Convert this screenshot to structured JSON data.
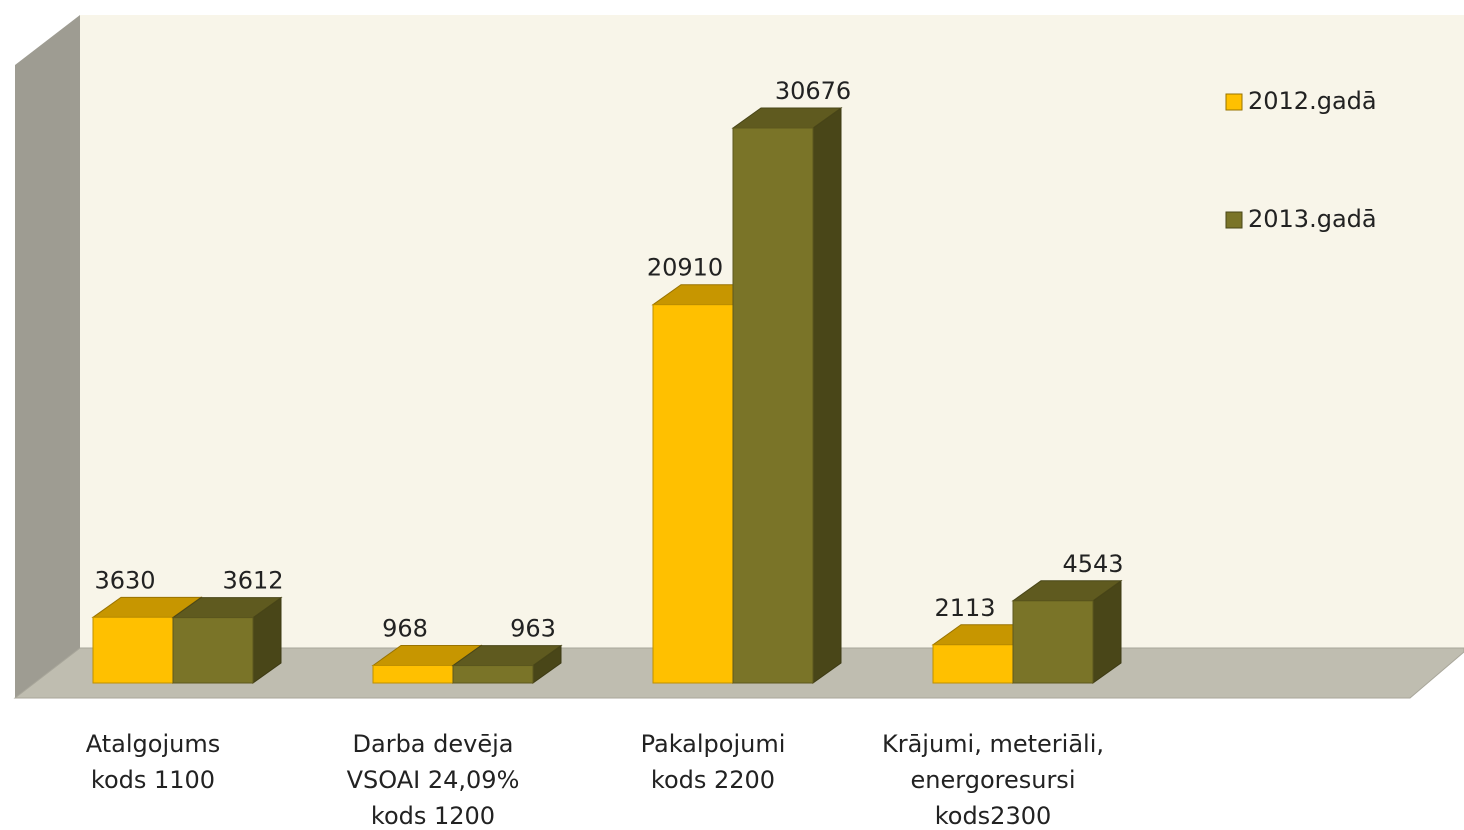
{
  "chart_data": {
    "type": "bar3d",
    "categories": [
      "Atalgojums\nkods 1100",
      "Darba devēja\nVSOAI 24,09%\nkods 1200",
      "Pakalpojumi\nkods 2200",
      "Krājumi, meteriāli,\nenergoresursi\nkods2300"
    ],
    "series": [
      {
        "name": "2012.gadā",
        "color": "#FFC000",
        "values": [
          3630,
          968,
          20910,
          2113
        ]
      },
      {
        "name": "2013.gadā",
        "color": "#7A7428",
        "values": [
          3612,
          963,
          30676,
          4543
        ]
      }
    ],
    "legend": "right"
  }
}
